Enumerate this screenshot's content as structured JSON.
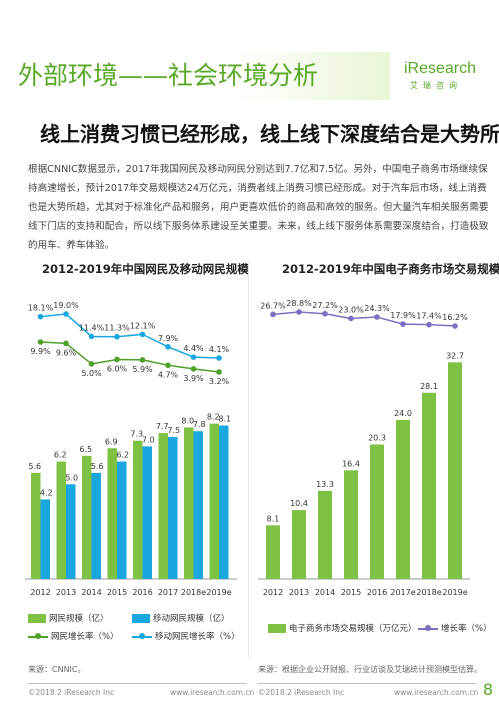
{
  "header": {
    "title": "外部环境——社会环境分析",
    "logo_text": "iResearch",
    "logo_sub": "艾瑞咨询"
  },
  "subtitle": "线上消费习惯已经形成，线上线下深度结合是大势所趋",
  "body_text": "根据CNNIC数据显示，2017年我国网民及移动网民分别达到7.7亿和7.5亿。另外，中国电子商务市场继续保持高速增长，预计2017年交易规模达24万亿元，消费者线上消费习惯已经形成。对于汽车后市场，线上消费也是大势所趋，尤其对于标准化产品和服务，用户更喜欢低价的商品和高效的服务。但大量汽车相关服务需要线下门店的支持和配合，所以线下服务体系建设至关重要。未来，线上线下服务体系需要深度结合，打造极致的用车、养车体验。",
  "colors": {
    "green": "#7dc243",
    "blue": "#1aa7e0",
    "dark_green": "#4fa02a",
    "purple": "#7a6fc1",
    "title_green": "#5aa828"
  },
  "chart_data": [
    {
      "type": "bar",
      "title": "2012-2019年中国网民及移动网民规模",
      "categories": [
        "2012",
        "2013",
        "2014",
        "2015",
        "2016",
        "2017",
        "2018e",
        "2019e"
      ],
      "series": [
        {
          "name": "网民规模（亿）",
          "type": "bar",
          "values": [
            5.6,
            6.2,
            6.5,
            6.9,
            7.3,
            7.7,
            8.0,
            8.2
          ],
          "labels": [
            "5.6",
            "6.2",
            "6.5",
            "6.9",
            "7.3",
            "7.7",
            "8.0",
            "8.2"
          ]
        },
        {
          "name": "移动网民规模（亿）",
          "type": "bar",
          "values": [
            4.2,
            5.0,
            5.6,
            6.2,
            7.0,
            7.5,
            7.8,
            8.1
          ],
          "labels": [
            "4.2",
            "5.0",
            "5.6",
            "6.2",
            "7.0",
            "7.5",
            "7.8",
            "8.1"
          ]
        },
        {
          "name": "网民增长率（%）",
          "type": "line",
          "values": [
            9.9,
            9.6,
            5.0,
            6.0,
            5.9,
            4.7,
            3.9,
            3.2
          ],
          "labels": [
            "9.9%",
            "9.6%",
            "5.0%",
            "6.0%",
            "5.9%",
            "4.7%",
            "3.9%",
            "3.2%"
          ]
        },
        {
          "name": "移动网民增长率（%）",
          "type": "line",
          "values": [
            18.1,
            19.0,
            11.4,
            11.3,
            12.1,
            7.9,
            4.4,
            4.1
          ],
          "labels": [
            "18.1%",
            "19.0%",
            "11.4%",
            "11.3%",
            "12.1%",
            "7.9%",
            "4.4%",
            "4.1%"
          ]
        }
      ],
      "legend": "bottom",
      "grid": false
    },
    {
      "type": "bar",
      "title": "2012-2019年中国电子商务市场交易规模",
      "categories": [
        "2012",
        "2013",
        "2014",
        "2015",
        "2016",
        "2017e",
        "2018e",
        "2019e"
      ],
      "series": [
        {
          "name": "电子商务市场交易规模（万亿元）",
          "type": "bar",
          "values": [
            8.1,
            10.4,
            13.3,
            16.4,
            20.3,
            24.0,
            28.1,
            32.7
          ],
          "labels": [
            "8.1",
            "10.4",
            "13.3",
            "16.4",
            "20.3",
            "24.0",
            "28.1",
            "32.7"
          ]
        },
        {
          "name": "增长率（%）",
          "type": "line",
          "values": [
            26.7,
            28.8,
            27.2,
            23.0,
            24.3,
            17.9,
            17.4,
            16.2
          ],
          "labels": [
            "26.7%",
            "28.8%",
            "27.2%",
            "23.0%",
            "24.3%",
            "17.9%",
            "17.4%",
            "16.2%"
          ]
        }
      ],
      "legend": "bottom",
      "grid": false
    }
  ],
  "legend1": {
    "net": "网民规模（亿）",
    "mobile": "移动网民规模（亿）",
    "net_rate": "网民增长率（%）",
    "mobile_rate": "移动网民增长率（%）"
  },
  "legend2": {
    "size": "电子商务市场交易规模（万亿元）",
    "rate": "增长率（%）"
  },
  "sources": {
    "left": "来源：CNNIC。",
    "right": "来源：根据企业公开财报、行业访谈及艾瑞统计预测模型估算。"
  },
  "footer": {
    "copyright": "©2018.2 iResearch Inc",
    "url": "www.iresearch.com.cn",
    "page": "8"
  }
}
